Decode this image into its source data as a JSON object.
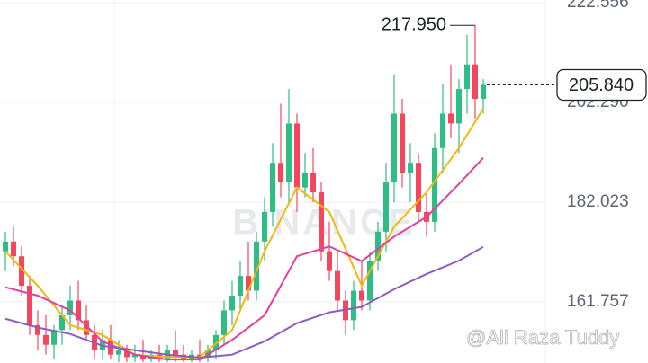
{
  "chart_data": {
    "type": "candlestick",
    "categories": [
      null,
      null,
      null,
      null,
      null,
      null,
      null,
      null,
      null,
      null,
      null,
      null,
      null,
      null,
      null,
      null,
      null,
      null,
      null,
      null,
      null,
      null,
      null,
      null,
      null,
      null,
      null,
      null,
      null,
      null,
      null,
      null,
      null,
      null,
      null,
      null,
      null,
      null,
      null,
      null,
      null,
      null,
      null,
      null,
      null,
      null,
      null,
      null,
      null,
      null,
      null,
      null,
      null,
      null,
      null,
      null,
      null,
      null,
      null,
      null
    ],
    "open": [
      172,
      174,
      171,
      165,
      157,
      155,
      153,
      156,
      159,
      162,
      158,
      155,
      152,
      154,
      151,
      152,
      150.5,
      151,
      150,
      151,
      150,
      152,
      151,
      150,
      151,
      150.5,
      152,
      155,
      160,
      163,
      167,
      164,
      174,
      180,
      190,
      186,
      198,
      185,
      188,
      184,
      172,
      168,
      162,
      158,
      164,
      162,
      170,
      176,
      186,
      200,
      188,
      190,
      180,
      178,
      193,
      200,
      198,
      205,
      210,
      203
    ],
    "high": [
      176,
      177,
      173,
      167,
      160,
      159,
      157,
      161,
      165,
      166,
      161,
      157,
      156,
      157,
      154,
      153,
      153,
      154,
      152,
      153,
      153,
      156,
      153,
      152,
      154,
      153,
      156,
      162,
      166,
      170,
      174,
      176,
      183,
      194,
      202,
      205,
      200,
      192,
      193,
      186,
      178,
      172,
      164,
      166,
      170,
      172,
      178,
      190,
      208,
      203,
      194,
      192,
      184,
      196,
      206,
      210,
      207,
      216,
      217.95,
      207
    ],
    "low": [
      168,
      169,
      163,
      155,
      152,
      151,
      150,
      153,
      156,
      156,
      154,
      150,
      150,
      150,
      149.5,
      149.5,
      149.5,
      149.5,
      149.5,
      149.5,
      149.5,
      149.5,
      149.5,
      149.5,
      149.5,
      149.5,
      150,
      153,
      157,
      160,
      162,
      162,
      170,
      177,
      183,
      182,
      180,
      183,
      182,
      170,
      166,
      160,
      155,
      156,
      160,
      160,
      168,
      172,
      182,
      185,
      182,
      178,
      175,
      176,
      188,
      195,
      192,
      200,
      199,
      200
    ],
    "close": [
      174,
      171,
      165,
      157,
      155,
      153,
      156,
      159,
      162,
      158,
      155,
      152,
      154,
      151,
      152,
      150.5,
      151,
      150,
      151,
      150,
      152,
      151,
      150,
      151,
      150.5,
      152,
      155,
      160,
      163,
      167,
      164,
      174,
      180,
      190,
      186,
      198,
      185,
      188,
      184,
      172,
      168,
      162,
      158,
      164,
      162,
      170,
      176,
      186,
      200,
      188,
      190,
      180,
      178,
      193,
      200,
      198,
      205,
      210,
      203,
      205.84
    ],
    "up_color": "#2ebd85",
    "down_color": "#f6465d",
    "series": [
      {
        "color": "#f0b90b",
        "x": [
          0,
          4,
          8,
          12,
          16,
          20,
          24,
          28,
          32,
          36,
          40,
          44,
          48,
          52,
          56,
          59
        ],
        "values": [
          172,
          165,
          157,
          155,
          151,
          150.5,
          150.5,
          156,
          172,
          185,
          180,
          165,
          177,
          184,
          193,
          201
        ]
      },
      {
        "color": "#e040a0",
        "x": [
          0,
          4,
          8,
          12,
          16,
          20,
          24,
          28,
          32,
          36,
          40,
          44,
          48,
          52,
          56,
          59
        ],
        "values": [
          164.7,
          163,
          160,
          153.7,
          151,
          150,
          150,
          154,
          159,
          171,
          173,
          170,
          175,
          179,
          185.7,
          191
        ]
      },
      {
        "color": "#8e5bbf",
        "x": [
          0,
          4,
          8,
          12,
          16,
          20,
          24,
          28,
          32,
          36,
          40,
          44,
          48,
          52,
          56,
          59
        ],
        "values": [
          158.3,
          156.5,
          155.2,
          152.8,
          151.9,
          151,
          150.4,
          151,
          153.7,
          157.4,
          159.6,
          160.7,
          164.3,
          167.4,
          170.1,
          172.9
        ]
      }
    ],
    "ylim": [
      149.3,
      223.1
    ],
    "yticks": [
      161.757,
      182.023,
      {
        "value": 202.29,
        "label": "202.290"
      },
      222.556
    ],
    "grid": true,
    "high_annotation": {
      "value": 217.95,
      "label": "217.950"
    },
    "last_price": {
      "value": 205.84,
      "label": "205.840"
    },
    "watermark": "BINANCE",
    "credit": "@Ali Raza Tuddy"
  }
}
